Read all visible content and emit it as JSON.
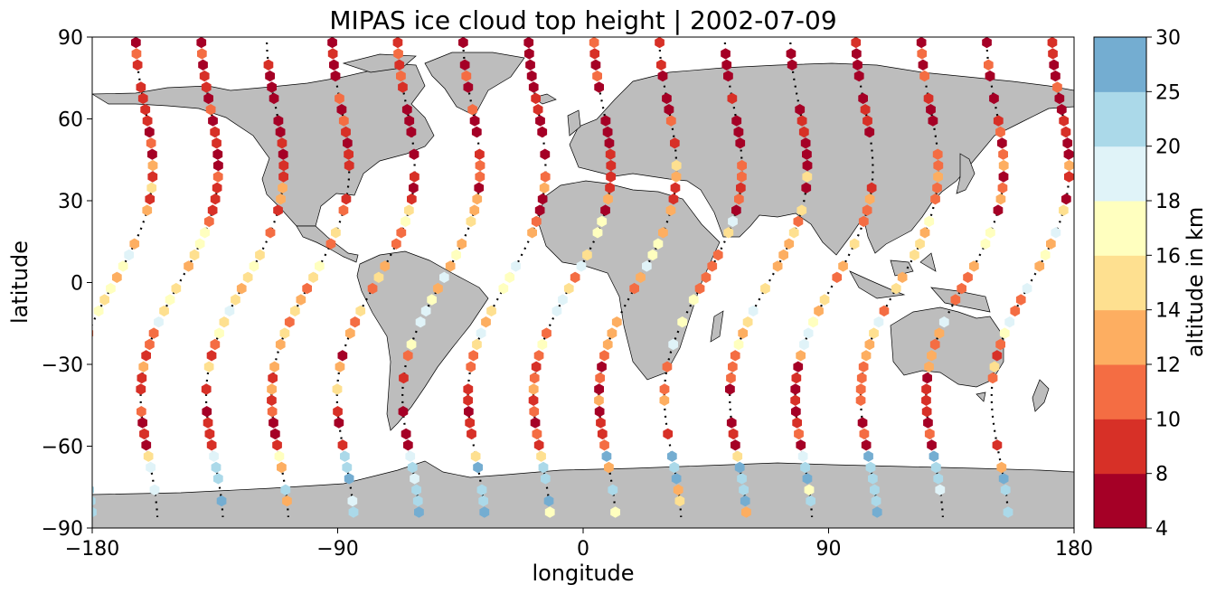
{
  "chart_data": {
    "type": "scatter",
    "title": "MIPAS ice cloud top height | 2002-07-09",
    "xlabel": "longitude",
    "ylabel": "latitude",
    "xlim": [
      -180,
      180
    ],
    "ylim": [
      -90,
      90
    ],
    "xticks": [
      -180,
      -90,
      0,
      90,
      180
    ],
    "xtick_labels": [
      "−180",
      "−90",
      "0",
      "90",
      "180"
    ],
    "yticks": [
      -90,
      -60,
      -30,
      0,
      30,
      60,
      90
    ],
    "ytick_labels": [
      "−90",
      "−60",
      "−30",
      "0",
      "30",
      "60",
      "90"
    ],
    "colorbar": {
      "label": "altitude in km",
      "bounds": [
        4,
        8,
        10,
        12,
        14,
        16,
        18,
        20,
        25,
        30
      ],
      "tick_labels": [
        "4",
        "8",
        "10",
        "12",
        "14",
        "16",
        "18",
        "20",
        "25",
        "30"
      ],
      "colors": [
        "#a50026",
        "#d73027",
        "#f46d43",
        "#fdae61",
        "#fee090",
        "#ffffbf",
        "#e0f3f8",
        "#abd9e9",
        "#74add1",
        "#4575b4",
        "#313695"
      ]
    },
    "background": {
      "land_color": "#bdbdbd",
      "coastline_color": "#000000",
      "grid": false
    },
    "tracks": {
      "crossings_lon": [
        -172,
        -148,
        -124,
        -100,
        -76,
        -52,
        -28,
        -4,
        20,
        44,
        68,
        92,
        116,
        140,
        164
      ],
      "marker": "hexagon",
      "values_shown_as_color": true
    }
  }
}
